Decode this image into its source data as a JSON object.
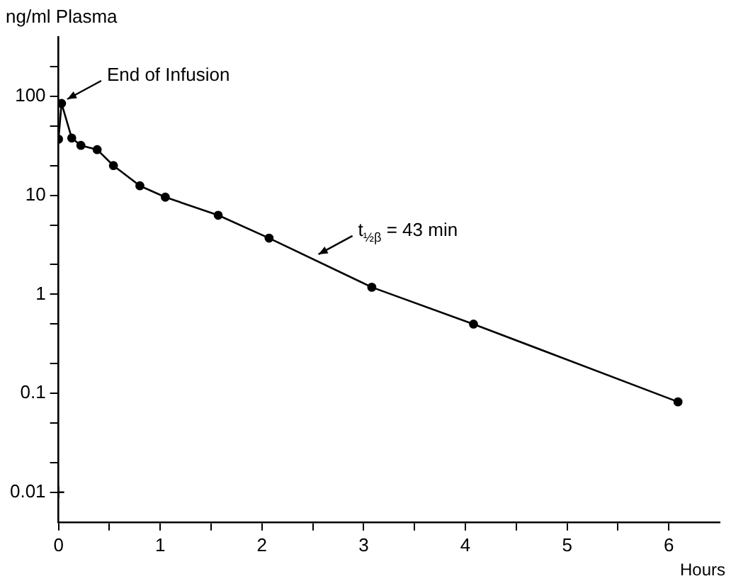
{
  "chart_data": {
    "type": "line",
    "xlabel": "Hours",
    "ylabel": "ng/ml Plasma",
    "log": "y",
    "grid": false,
    "legend": false,
    "marker": "circle",
    "line_style": "solid",
    "xlim": [
      0,
      6.5
    ],
    "ylim": [
      0.005,
      400
    ],
    "xticks": [
      0,
      {
        "value": 0.5,
        "label": null
      },
      1,
      {
        "value": 1.5,
        "label": null
      },
      2,
      {
        "value": 2.5,
        "label": null
      },
      3,
      {
        "value": 3.5,
        "label": null
      },
      4,
      {
        "value": 4.5,
        "label": null
      },
      5,
      {
        "value": 5.5,
        "label": null
      },
      6
    ],
    "yticks": [
      {
        "value": 0.01,
        "label": "0.01"
      },
      {
        "value": 0.02,
        "label": null
      },
      {
        "value": 0.05,
        "label": null
      },
      {
        "value": 0.1,
        "label": "0.1"
      },
      {
        "value": 0.2,
        "label": null
      },
      {
        "value": 0.5,
        "label": null
      },
      1,
      {
        "value": 2,
        "label": null
      },
      {
        "value": 5,
        "label": null
      },
      10,
      {
        "value": 20,
        "label": null
      },
      {
        "value": 50,
        "label": null
      },
      100,
      {
        "value": 200,
        "label": null
      }
    ],
    "series": [
      {
        "color": "#000000",
        "x": [
          0,
          0.03,
          0.13,
          0.22,
          0.38,
          0.54,
          0.8,
          1.05,
          1.57,
          2.07,
          3.08,
          4.08,
          6.09
        ],
        "values": [
          37,
          85,
          38,
          32,
          29,
          20,
          12.5,
          9.6,
          6.3,
          3.7,
          1.18,
          0.5,
          0.082
        ]
      },
      {
        "type": "scatter",
        "marker": "cross",
        "color": "#000000",
        "x": [
          0
        ],
        "values": [
          0.01
        ]
      }
    ],
    "annotations": [
      {
        "text": "End of Infusion",
        "x": 0.03,
        "y": 85
      },
      {
        "text": "t$_{½β}$ = 43 min",
        "x": 2.5,
        "y": 2.3
      }
    ]
  }
}
